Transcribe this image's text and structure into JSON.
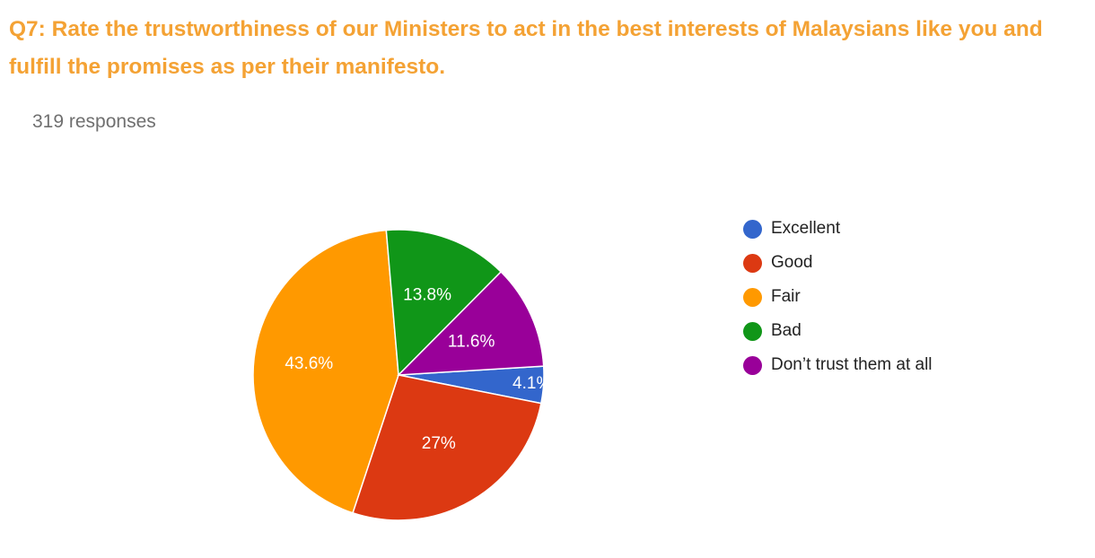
{
  "question": {
    "text": "Q7: Rate the trustworthiness of our Ministers to act in the best interests of Malaysians like you and fulfill the promises as per their manifesto."
  },
  "response_count_text": "319 responses",
  "chart_data": {
    "type": "pie",
    "categories": [
      "Excellent",
      "Good",
      "Fair",
      "Bad",
      "Don’t trust them at all"
    ],
    "values": [
      4.1,
      27,
      43.6,
      13.8,
      11.6
    ],
    "value_labels": [
      "4.1%",
      "27%",
      "43.6%",
      "13.8%",
      "11.6%"
    ],
    "colors": [
      "#3366cc",
      "#dc3912",
      "#ff9900",
      "#109618",
      "#990099"
    ],
    "slice_order": [
      "Excellent",
      "Good",
      "Fair",
      "Bad",
      "Don’t trust them at all"
    ],
    "start_angle": "after “Don’t trust them at all”, just above 3 o'clock",
    "direction": "clockwise",
    "legend_position": "right",
    "title": ""
  }
}
